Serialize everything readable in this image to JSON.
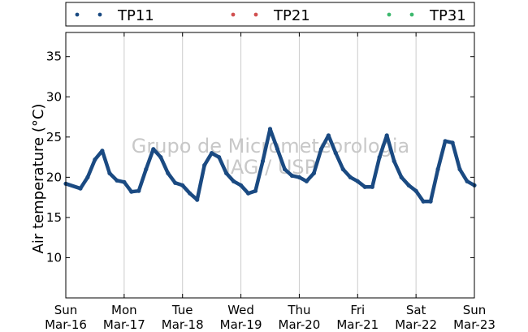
{
  "chart_data": {
    "type": "line",
    "title": "",
    "xlabel": "",
    "ylabel": "Air temperature (°C)",
    "ylim": [
      5,
      38
    ],
    "xlim": [
      "2014-03-16",
      "2014-03-23"
    ],
    "yticks": [
      10,
      15,
      20,
      25,
      30,
      35
    ],
    "xticks": [
      {
        "line1": "Sun",
        "line2": "Mar-16"
      },
      {
        "line1": "Mon",
        "line2": "Mar-17"
      },
      {
        "line1": "Tue",
        "line2": "Mar-18"
      },
      {
        "line1": "Wed",
        "line2": "Mar-19"
      },
      {
        "line1": "Thu",
        "line2": "Mar-20"
      },
      {
        "line1": "Fri",
        "line2": "Mar-21"
      },
      {
        "line1": "Sat",
        "line2": "Mar-22"
      },
      {
        "line1": "Sun",
        "line2": "Mar-23"
      }
    ],
    "grid": "vertical",
    "legend": {
      "placement": "top",
      "entries": [
        "TP11",
        "TP21",
        "TP31"
      ]
    },
    "watermark": [
      "Grupo de Micrometeorologia",
      "IAG / USP"
    ],
    "series": [
      {
        "name": "TP11",
        "color": "#1a4a82",
        "x": [
          "2014-03-16 00:00",
          "2014-03-16 06:00",
          "2014-03-16 09:00",
          "2014-03-16 12:00",
          "2014-03-16 15:00",
          "2014-03-16 18:00",
          "2014-03-16 21:00",
          "2014-03-17 00:00",
          "2014-03-17 03:00",
          "2014-03-17 06:00",
          "2014-03-17 09:00",
          "2014-03-17 12:00",
          "2014-03-17 15:00",
          "2014-03-17 18:00",
          "2014-03-17 21:00",
          "2014-03-18 00:00",
          "2014-03-18 03:00",
          "2014-03-18 06:00",
          "2014-03-18 09:00",
          "2014-03-18 12:00",
          "2014-03-18 15:00",
          "2014-03-18 18:00",
          "2014-03-18 21:00",
          "2014-03-19 00:00",
          "2014-03-19 03:00",
          "2014-03-19 06:00",
          "2014-03-19 09:00",
          "2014-03-19 12:00",
          "2014-03-19 15:00",
          "2014-03-19 18:00",
          "2014-03-19 21:00",
          "2014-03-20 00:00",
          "2014-03-20 03:00",
          "2014-03-20 06:00",
          "2014-03-20 09:00",
          "2014-03-20 12:00",
          "2014-03-20 15:00",
          "2014-03-20 18:00",
          "2014-03-20 21:00",
          "2014-03-21 00:00",
          "2014-03-21 03:00",
          "2014-03-21 06:00",
          "2014-03-21 09:00",
          "2014-03-21 12:00",
          "2014-03-21 15:00",
          "2014-03-21 18:00",
          "2014-03-21 21:00",
          "2014-03-22 00:00",
          "2014-03-22 03:00",
          "2014-03-22 06:00",
          "2014-03-22 09:00",
          "2014-03-22 12:00",
          "2014-03-22 15:00",
          "2014-03-22 18:00",
          "2014-03-22 21:00",
          "2014-03-23 00:00"
        ],
        "y": [
          19.2,
          18.6,
          20.0,
          22.2,
          23.3,
          20.5,
          19.6,
          19.4,
          18.2,
          18.3,
          21.0,
          23.5,
          22.5,
          20.5,
          19.3,
          19.0,
          18.0,
          17.2,
          21.5,
          23.0,
          22.5,
          20.5,
          19.5,
          19.0,
          18.0,
          18.3,
          22.0,
          26.0,
          23.5,
          21.0,
          20.2,
          20.0,
          19.5,
          20.5,
          23.5,
          25.2,
          23.0,
          21.0,
          20.0,
          19.5,
          18.8,
          18.8,
          22.5,
          25.2,
          22.0,
          20.0,
          19.0,
          18.3,
          17.0,
          17.0,
          21.0,
          24.5,
          24.3,
          21.0,
          19.5,
          19.0
        ]
      },
      {
        "name": "TP21",
        "color": "#d15050",
        "x": [],
        "y": []
      },
      {
        "name": "TP31",
        "color": "#3db86e",
        "x": [],
        "y": []
      }
    ]
  }
}
